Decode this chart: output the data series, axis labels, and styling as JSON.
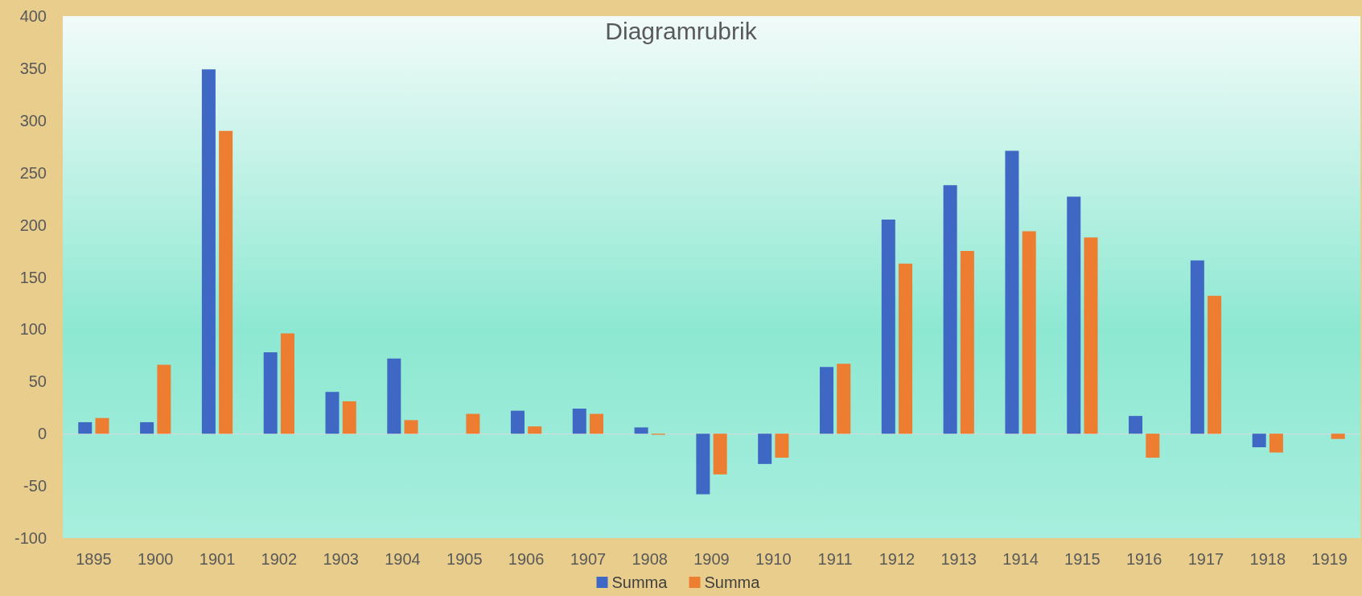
{
  "chart_data": {
    "type": "bar",
    "title": "Diagramrubrik",
    "categories": [
      "1895",
      "1900",
      "1901",
      "1902",
      "1903",
      "1904",
      "1905",
      "1906",
      "1907",
      "1908",
      "1909",
      "1910",
      "1911",
      "1912",
      "1913",
      "1914",
      "1915",
      "1916",
      "1917",
      "1918",
      "1919"
    ],
    "series": [
      {
        "name": "Summa",
        "color": "#3f67c4",
        "values": [
          11,
          11,
          349,
          78,
          40,
          72,
          null,
          22,
          24,
          6,
          -58,
          -29,
          64,
          205,
          238,
          271,
          227,
          17,
          166,
          -13,
          null
        ]
      },
      {
        "name": "Summa",
        "color": "#ed7d31",
        "values": [
          15,
          66,
          290,
          96,
          31,
          13,
          19,
          7,
          19,
          -1,
          -39,
          -23,
          67,
          163,
          175,
          194,
          188,
          -23,
          132,
          -18,
          -5
        ]
      }
    ],
    "ylim": [
      -100,
      400
    ],
    "yticks": [
      -100,
      -50,
      0,
      50,
      100,
      150,
      200,
      250,
      300,
      350,
      400
    ],
    "legend": "bottom"
  }
}
